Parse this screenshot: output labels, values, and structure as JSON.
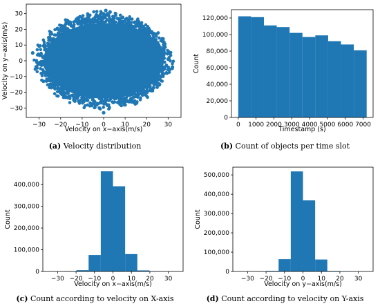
{
  "colors": {
    "bar": "#1f77b4",
    "axis": "#000000",
    "background": "#ffffff"
  },
  "captions": [
    {
      "letter": "(a)",
      "text": "Velocity distribution"
    },
    {
      "letter": "(b)",
      "text": "Count of objects per time slot"
    },
    {
      "letter": "(c)",
      "text": "Count according to velocity on X-axis"
    },
    {
      "letter": "(d)",
      "text": "Count according to velocity on Y-axis"
    }
  ],
  "chart_data": [
    {
      "type": "scatter",
      "xlabel": "Velocity on x−axis(m/s)",
      "ylabel": "Velocity on y−axis(m/s)",
      "xlim": [
        -36,
        36
      ],
      "ylim": [
        -36,
        36
      ],
      "xticks": [
        -30,
        -20,
        -10,
        0,
        10,
        20,
        30
      ],
      "yticks": [
        -30,
        -20,
        -10,
        0,
        10,
        20,
        30
      ],
      "xtick_labels": [
        "−30",
        "−20",
        "−10",
        "0",
        "10",
        "20",
        "30"
      ],
      "ytick_labels": [
        "−30",
        "−20",
        "−10",
        "0",
        "10",
        "20",
        "30"
      ],
      "grid": false,
      "points": [
        [
          0,
          0
        ],
        [
          5,
          3
        ],
        [
          -6,
          -2
        ],
        [
          12,
          4
        ],
        [
          -14,
          6
        ],
        [
          20,
          -3
        ],
        [
          -22,
          2
        ],
        [
          25,
          8
        ],
        [
          -26,
          -9
        ],
        [
          30,
          1
        ],
        [
          -31,
          -1
        ],
        [
          15,
          18
        ],
        [
          -17,
          -16
        ],
        [
          8,
          25
        ],
        [
          -9,
          -24
        ],
        [
          3,
          31
        ],
        [
          -2,
          -30
        ],
        [
          18,
          22
        ],
        [
          -19,
          21
        ],
        [
          22,
          -18
        ],
        [
          -23,
          -17
        ],
        [
          28,
          12
        ],
        [
          -28,
          -13
        ],
        [
          10,
          -28
        ],
        [
          -11,
          28
        ],
        [
          32,
          -4
        ],
        [
          -33,
          5
        ],
        [
          0,
          -33
        ],
        [
          1,
          32
        ],
        [
          26,
          -15
        ]
      ]
    },
    {
      "type": "bar",
      "xlabel": "Timestamp (s)",
      "ylabel": "Count",
      "xlim": [
        -380,
        7560
      ],
      "ylim": [
        0,
        130000
      ],
      "bin_edges": [
        0,
        720,
        1440,
        2160,
        2880,
        3600,
        4320,
        5040,
        5760,
        6480,
        7200
      ],
      "values": [
        122000,
        121000,
        111000,
        109000,
        102000,
        97000,
        99000,
        92000,
        88000,
        81000
      ],
      "xticks": [
        0,
        1000,
        2000,
        3000,
        4000,
        5000,
        6000,
        7000
      ],
      "xtick_labels": [
        "0",
        "1000",
        "2000",
        "3000",
        "4000",
        "5000",
        "6000",
        "7000"
      ],
      "yticks": [
        0,
        20000,
        40000,
        60000,
        80000,
        100000,
        120000
      ],
      "ytick_labels": [
        "0",
        "20,000",
        "40,000",
        "60,000",
        "80,000",
        "100,000",
        "120,000"
      ],
      "grid": false
    },
    {
      "type": "bar",
      "xlabel": "Velocity on x−axis(m/s)",
      "ylabel": "Count",
      "xlim": [
        -38,
        38
      ],
      "ylim": [
        0,
        480000
      ],
      "bin_edges": [
        -33,
        -26.4,
        -19.8,
        -13.2,
        -6.6,
        0,
        6.6,
        13.2,
        19.8,
        26.4,
        33
      ],
      "values": [
        300,
        1500,
        6000,
        76000,
        461000,
        392000,
        80000,
        5000,
        1000,
        300
      ],
      "xticks": [
        -30,
        -20,
        -10,
        0,
        10,
        20,
        30
      ],
      "xtick_labels": [
        "−30",
        "−20",
        "−10",
        "0",
        "10",
        "20",
        "30"
      ],
      "yticks": [
        0,
        100000,
        200000,
        300000,
        400000
      ],
      "ytick_labels": [
        "0",
        "100,000",
        "200,000",
        "300,000",
        "400,000"
      ],
      "grid": false
    },
    {
      "type": "bar",
      "xlabel": "Velocity on y−axis(m/s)",
      "ylabel": "Count",
      "xlim": [
        -38,
        38
      ],
      "ylim": [
        0,
        540000
      ],
      "bin_edges": [
        -33,
        -26.4,
        -19.8,
        -13.2,
        -6.6,
        0,
        6.6,
        13.2,
        19.8,
        26.4,
        33
      ],
      "values": [
        200,
        800,
        3000,
        64000,
        518000,
        368000,
        62000,
        2500,
        600,
        200
      ],
      "xticks": [
        -30,
        -20,
        -10,
        0,
        10,
        20,
        30
      ],
      "xtick_labels": [
        "−30",
        "−20",
        "−10",
        "0",
        "10",
        "20",
        "30"
      ],
      "yticks": [
        0,
        100000,
        200000,
        300000,
        400000,
        500000
      ],
      "ytick_labels": [
        "0",
        "100,000",
        "200,000",
        "300,000",
        "400,000",
        "500,000"
      ],
      "grid": false
    }
  ]
}
